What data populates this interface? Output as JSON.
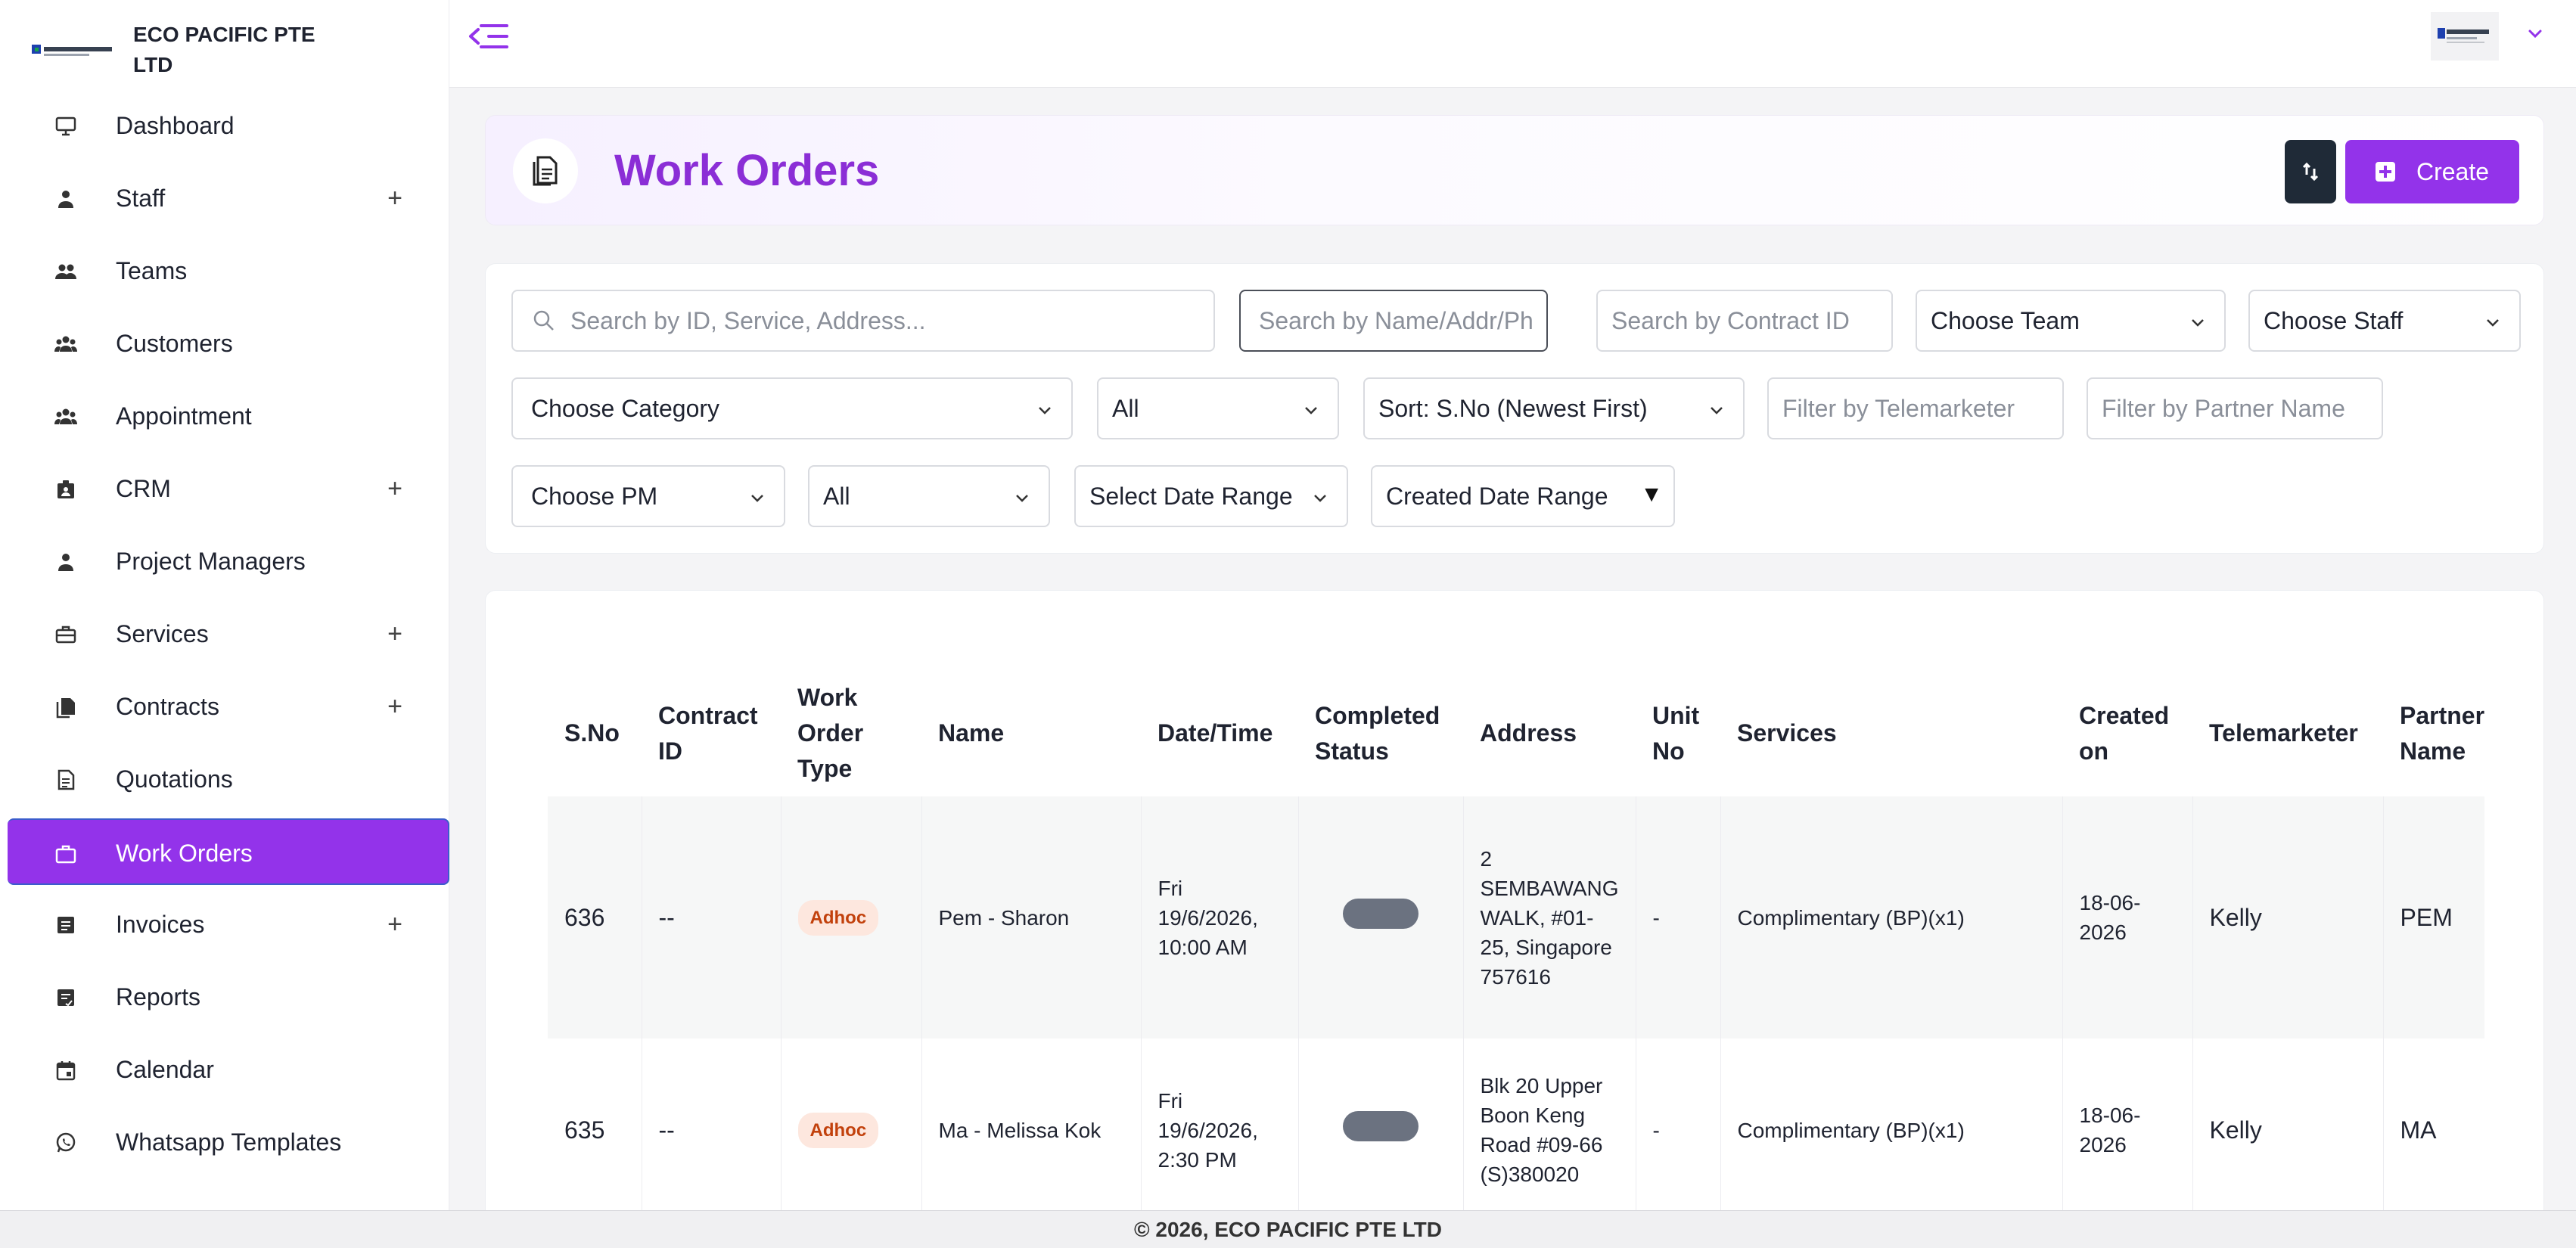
{
  "brand": {
    "name": "ECO PACIFIC PTE LTD",
    "logo_text": "ECO PACIFIC PTE LTD"
  },
  "sidebar": {
    "items": [
      {
        "label": "Dashboard",
        "icon": "monitor-icon",
        "expandable": false
      },
      {
        "label": "Staff",
        "icon": "person-icon",
        "expandable": true
      },
      {
        "label": "Teams",
        "icon": "people-icon",
        "expandable": false
      },
      {
        "label": "Customers",
        "icon": "group-icon",
        "expandable": false
      },
      {
        "label": "Appointment",
        "icon": "group-icon",
        "expandable": false
      },
      {
        "label": "CRM",
        "icon": "badge-icon",
        "expandable": true
      },
      {
        "label": "Project Managers",
        "icon": "person-icon",
        "expandable": false
      },
      {
        "label": "Services",
        "icon": "toolbox-icon",
        "expandable": true
      },
      {
        "label": "Contracts",
        "icon": "files-icon",
        "expandable": true
      },
      {
        "label": "Quotations",
        "icon": "document-icon",
        "expandable": false
      },
      {
        "label": "Work Orders",
        "icon": "briefcase-icon",
        "expandable": false,
        "active": true
      },
      {
        "label": "Invoices",
        "icon": "receipt-icon",
        "expandable": true
      },
      {
        "label": "Reports",
        "icon": "report-icon",
        "expandable": false
      },
      {
        "label": "Calendar",
        "icon": "calendar-icon",
        "expandable": false
      },
      {
        "label": "Whatsapp Templates",
        "icon": "whatsapp-icon",
        "expandable": false
      }
    ],
    "plus_symbol": "+"
  },
  "page": {
    "title": "Work Orders",
    "create_label": "Create"
  },
  "filters": {
    "search_main_placeholder": "Search by ID, Service, Address...",
    "search_name_placeholder": "Search by Name/Addr/Ph",
    "search_contract_placeholder": "Search by Contract ID",
    "team": "Choose Team",
    "staff": "Choose Staff",
    "category": "Choose Category",
    "type": "All",
    "sort": "Sort: S.No (Newest First)",
    "telemarketer_placeholder": "Filter by Telemarketer",
    "partner_placeholder": "Filter by Partner Name",
    "pm": "Choose PM",
    "status": "All",
    "date_range": "Select Date Range",
    "created_date_range": "Created Date Range",
    "created_triangle": "▼"
  },
  "table": {
    "headers": {
      "sno": "S.No",
      "contract_id": "Contract ID",
      "work_order_type": "Work Order Type",
      "name": "Name",
      "datetime": "Date/Time",
      "completed_status": "Completed Status",
      "address": "Address",
      "unit_no": "Unit No",
      "services": "Services",
      "created_on": "Created on",
      "telemarketer": "Telemarketer",
      "partner_name": "Partner Name"
    },
    "rows": [
      {
        "sno": "636",
        "contract_id": "--",
        "type": "Adhoc",
        "name": "Pem - Sharon",
        "datetime": "Fri 19/6/2026, 10:00 AM",
        "address": "2 SEMBAWANG WALK, #01-25, Singapore 757616",
        "unit_no": "-",
        "services": "Complimentary (BP)(x1)",
        "created_on": "18-06-2026",
        "telemarketer": "Kelly",
        "partner": "PEM"
      },
      {
        "sno": "635",
        "contract_id": "--",
        "type": "Adhoc",
        "name": "Ma - Melissa Kok",
        "datetime": "Fri 19/6/2026, 2:30 PM",
        "address": "Blk 20 Upper Boon Keng Road #09-66 (S)380020",
        "unit_no": "-",
        "services": "Complimentary (BP)(x1)",
        "created_on": "18-06-2026",
        "telemarketer": "Kelly",
        "partner": "MA"
      }
    ]
  },
  "footer": {
    "text": "© 2026, ECO PACIFIC PTE LTD"
  },
  "colors": {
    "accent": "#9333ea",
    "title": "#8b2ed6",
    "dark_button": "#1f2a37",
    "badge_bg": "#fde7de",
    "badge_text": "#c2410c"
  }
}
